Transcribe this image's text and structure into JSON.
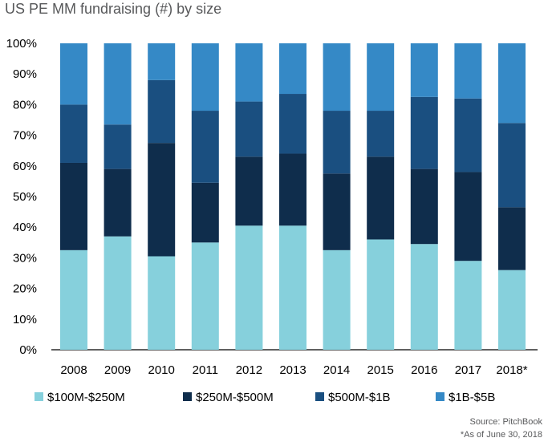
{
  "chart_data": {
    "type": "bar",
    "stacked": true,
    "percent": true,
    "title": "US PE MM fundraising (#) by size",
    "categories": [
      "2008",
      "2009",
      "2010",
      "2011",
      "2012",
      "2013",
      "2014",
      "2015",
      "2016",
      "2017",
      "2018*"
    ],
    "series": [
      {
        "name": "$100M-$250M",
        "color": "#86D0DC",
        "values": [
          32.5,
          37,
          30.5,
          35,
          40.5,
          40.5,
          32.5,
          36,
          34.5,
          29,
          26
        ]
      },
      {
        "name": "$250M-$500M",
        "color": "#0F2D4C",
        "values": [
          28.5,
          22,
          37,
          19.5,
          22.5,
          23.5,
          25,
          27,
          24.5,
          29,
          20.5
        ]
      },
      {
        "name": "$500M-$1B",
        "color": "#1A4F80",
        "values": [
          19,
          14.5,
          20.5,
          23.5,
          18,
          19.5,
          20.5,
          15,
          23.5,
          24,
          27.5
        ]
      },
      {
        "name": "$1B-$5B",
        "color": "#3589C6",
        "values": [
          20,
          26.5,
          12,
          22,
          19,
          16.5,
          22,
          22,
          17.5,
          18,
          26
        ]
      }
    ],
    "ylim": [
      0,
      100
    ],
    "yticks": [
      "0%",
      "10%",
      "20%",
      "30%",
      "40%",
      "50%",
      "60%",
      "70%",
      "80%",
      "90%",
      "100%"
    ],
    "grid": false,
    "legend_position": "bottom"
  },
  "footer": {
    "source": "Source: PitchBook",
    "note": "*As of June 30, 2018"
  }
}
